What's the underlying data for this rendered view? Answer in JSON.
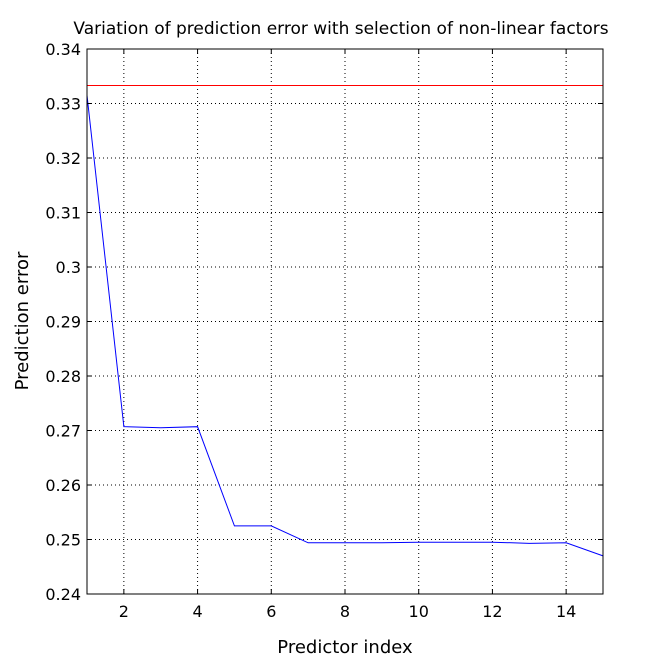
{
  "chart_data": {
    "type": "line",
    "title": "Variation of prediction error with selection of non-linear factors",
    "xlabel": "Predictor index",
    "ylabel": "Prediction error",
    "xlim": [
      1,
      15
    ],
    "ylim": [
      0.24,
      0.34
    ],
    "xticks": [
      2,
      4,
      6,
      8,
      10,
      12,
      14
    ],
    "xtick_labels": [
      "2",
      "4",
      "6",
      "8",
      "10",
      "12",
      "14"
    ],
    "yticks": [
      0.24,
      0.25,
      0.26,
      0.27,
      0.28,
      0.29,
      0.3,
      0.31,
      0.32,
      0.33,
      0.34
    ],
    "ytick_labels": [
      "0.24",
      "0.25",
      "0.26",
      "0.27",
      "0.28",
      "0.29",
      "0.3",
      "0.31",
      "0.32",
      "0.33",
      "0.34"
    ],
    "grid": true,
    "grid_style": "dotted",
    "series": [
      {
        "color": "#0000ff",
        "x": [
          1,
          2,
          3,
          4,
          5,
          6,
          7,
          8,
          9,
          10,
          11,
          12,
          13,
          14,
          15
        ],
        "y": [
          0.3315,
          0.2707,
          0.2705,
          0.2707,
          0.2525,
          0.2525,
          0.2494,
          0.2494,
          0.2494,
          0.2495,
          0.2495,
          0.2495,
          0.2493,
          0.2494,
          0.247
        ]
      },
      {
        "color": "#ff0000",
        "x": [
          1,
          15
        ],
        "y": [
          0.3333,
          0.3333
        ]
      }
    ]
  }
}
